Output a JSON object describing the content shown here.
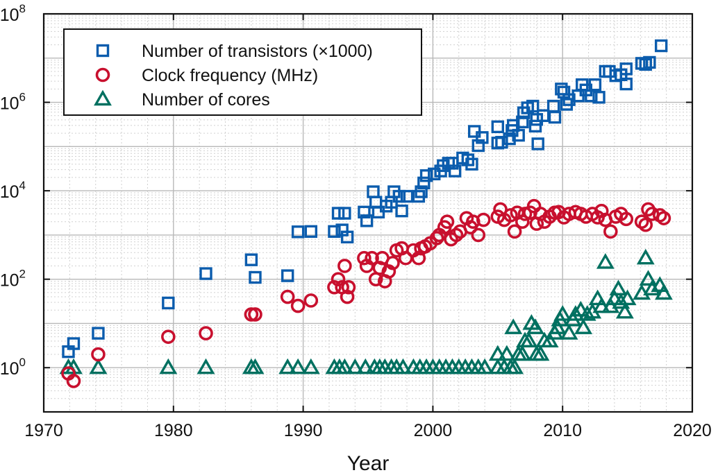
{
  "chart_data": {
    "type": "scatter",
    "title": "",
    "xlabel": "Year",
    "ylabel": "",
    "xlim": [
      1970,
      2020
    ],
    "ylim": [
      0.1,
      100000000
    ],
    "yscale": "log",
    "grid": true,
    "legend_position": "top-left",
    "x_ticks": [
      "1970",
      "1980",
      "1990",
      "2000",
      "2010",
      "2020"
    ],
    "y_ticks": [
      {
        "base": "10",
        "exp": "0"
      },
      {
        "base": "10",
        "exp": "2"
      },
      {
        "base": "10",
        "exp": "4"
      },
      {
        "base": "10",
        "exp": "6"
      },
      {
        "base": "10",
        "exp": "8"
      }
    ],
    "series": [
      {
        "name": "Number of transistors (×1000)",
        "marker": "square",
        "color": "#0b5cad",
        "points": [
          [
            1971.9,
            2.3
          ],
          [
            1972.3,
            3.5
          ],
          [
            1974.2,
            6
          ],
          [
            1979.6,
            29
          ],
          [
            1982.5,
            134
          ],
          [
            1986.0,
            275
          ],
          [
            1986.3,
            110
          ],
          [
            1988.8,
            120
          ],
          [
            1989.6,
            1180
          ],
          [
            1990.6,
            1200
          ],
          [
            1992.4,
            1200
          ],
          [
            1992.7,
            3100
          ],
          [
            1993.0,
            1300
          ],
          [
            1993.2,
            3100
          ],
          [
            1993.4,
            900
          ],
          [
            1994.7,
            3300
          ],
          [
            1994.9,
            2100
          ],
          [
            1995.6,
            5500
          ],
          [
            1995.8,
            3300
          ],
          [
            1995.4,
            9500
          ],
          [
            1996.4,
            4500
          ],
          [
            1996.8,
            5500
          ],
          [
            1997.0,
            9500
          ],
          [
            1997.4,
            7500
          ],
          [
            1997.6,
            3500
          ],
          [
            1998.0,
            7500
          ],
          [
            1998.9,
            7500
          ],
          [
            1999.1,
            9500
          ],
          [
            1999.3,
            15000
          ],
          [
            1999.5,
            22000
          ],
          [
            2000.1,
            24000
          ],
          [
            2000.6,
            28000
          ],
          [
            2000.8,
            37000
          ],
          [
            2001.2,
            42000
          ],
          [
            2001.5,
            42000
          ],
          [
            2001.7,
            28000
          ],
          [
            2002.3,
            55000
          ],
          [
            2002.7,
            50000
          ],
          [
            2003.0,
            40000
          ],
          [
            2003.2,
            220000
          ],
          [
            2003.5,
            105000
          ],
          [
            2003.8,
            160000
          ],
          [
            2005.0,
            280000
          ],
          [
            2005.0,
            120000
          ],
          [
            2005.3,
            125000
          ],
          [
            2005.9,
            150000
          ],
          [
            2006.1,
            230000
          ],
          [
            2006.2,
            300000
          ],
          [
            2006.6,
            180000
          ],
          [
            2006.9,
            360000
          ],
          [
            2007.0,
            580000
          ],
          [
            2007.3,
            750000
          ],
          [
            2007.7,
            820000
          ],
          [
            2007.9,
            290000
          ],
          [
            2008.0,
            410000
          ],
          [
            2008.1,
            115000
          ],
          [
            2008.5,
            500000
          ],
          [
            2009.3,
            820000
          ],
          [
            2009.4,
            460000
          ],
          [
            2009.9,
            2000000
          ],
          [
            2010.1,
            1700000
          ],
          [
            2010.3,
            900000
          ],
          [
            2010.5,
            1150000
          ],
          [
            2011.2,
            1400000
          ],
          [
            2011.5,
            2500000
          ],
          [
            2011.8,
            1900000
          ],
          [
            2012.2,
            1400000
          ],
          [
            2012.5,
            2500000
          ],
          [
            2012.8,
            1300000
          ],
          [
            2013.3,
            5000000
          ],
          [
            2013.6,
            5000000
          ],
          [
            2014.1,
            4000000
          ],
          [
            2014.5,
            4200000
          ],
          [
            2014.9,
            5700000
          ],
          [
            2014.9,
            2600000
          ],
          [
            2016.1,
            7600000
          ],
          [
            2016.4,
            7200000
          ],
          [
            2016.7,
            8000000
          ],
          [
            2017.6,
            19000000
          ]
        ]
      },
      {
        "name": "Clock frequency (MHz)",
        "marker": "circle",
        "color": "#c8102e",
        "points": [
          [
            1971.9,
            0.74
          ],
          [
            1972.3,
            0.5
          ],
          [
            1974.2,
            2
          ],
          [
            1979.6,
            5
          ],
          [
            1982.5,
            6
          ],
          [
            1986.0,
            16
          ],
          [
            1986.3,
            16
          ],
          [
            1988.8,
            40
          ],
          [
            1989.6,
            25
          ],
          [
            1990.6,
            33
          ],
          [
            1992.4,
            66
          ],
          [
            1992.7,
            100
          ],
          [
            1993.0,
            66
          ],
          [
            1993.2,
            200
          ],
          [
            1993.4,
            40
          ],
          [
            1993.5,
            66
          ],
          [
            1994.7,
            300
          ],
          [
            1994.9,
            200
          ],
          [
            1995.3,
            300
          ],
          [
            1995.6,
            100
          ],
          [
            1995.9,
            180
          ],
          [
            1996.1,
            300
          ],
          [
            1996.3,
            90
          ],
          [
            1996.6,
            150
          ],
          [
            1996.9,
            233
          ],
          [
            1997.2,
            450
          ],
          [
            1997.6,
            500
          ],
          [
            1997.9,
            300
          ],
          [
            1998.5,
            450
          ],
          [
            1998.9,
            300
          ],
          [
            1999.1,
            500
          ],
          [
            1999.4,
            550
          ],
          [
            1999.8,
            650
          ],
          [
            2000.3,
            850
          ],
          [
            2000.5,
            1000
          ],
          [
            2000.9,
            1500
          ],
          [
            2001.1,
            2000
          ],
          [
            2001.4,
            800
          ],
          [
            2001.8,
            1000
          ],
          [
            2002.1,
            1200
          ],
          [
            2002.6,
            2400
          ],
          [
            2002.9,
            1500
          ],
          [
            2003.1,
            2000
          ],
          [
            2003.5,
            1000
          ],
          [
            2003.9,
            2200
          ],
          [
            2005.0,
            2600
          ],
          [
            2005.2,
            3800
          ],
          [
            2005.5,
            2200
          ],
          [
            2006.0,
            2800
          ],
          [
            2006.3,
            1200
          ],
          [
            2006.5,
            3200
          ],
          [
            2006.9,
            2000
          ],
          [
            2007.1,
            3000
          ],
          [
            2007.5,
            3200
          ],
          [
            2007.8,
            4500
          ],
          [
            2008.0,
            1800
          ],
          [
            2008.3,
            3000
          ],
          [
            2008.6,
            2000
          ],
          [
            2009.0,
            2600
          ],
          [
            2009.4,
            3200
          ],
          [
            2009.7,
            3300
          ],
          [
            2010.1,
            2500
          ],
          [
            2010.5,
            3000
          ],
          [
            2011.0,
            3300
          ],
          [
            2011.4,
            3000
          ],
          [
            2011.8,
            2600
          ],
          [
            2012.3,
            3000
          ],
          [
            2012.7,
            2500
          ],
          [
            2013.0,
            3500
          ],
          [
            2013.3,
            2200
          ],
          [
            2013.7,
            1200
          ],
          [
            2014.1,
            2600
          ],
          [
            2014.5,
            3000
          ],
          [
            2014.9,
            2300
          ],
          [
            2016.1,
            2000
          ],
          [
            2016.4,
            1700
          ],
          [
            2016.6,
            3800
          ],
          [
            2016.9,
            3000
          ],
          [
            2017.5,
            2800
          ],
          [
            2017.8,
            2400
          ]
        ]
      },
      {
        "name": "Number of cores",
        "marker": "triangle",
        "color": "#007060",
        "points": [
          [
            1971.9,
            1
          ],
          [
            1972.3,
            1
          ],
          [
            1974.2,
            1
          ],
          [
            1979.6,
            1
          ],
          [
            1982.5,
            1
          ],
          [
            1986.0,
            1
          ],
          [
            1986.3,
            1
          ],
          [
            1988.8,
            1
          ],
          [
            1989.6,
            1
          ],
          [
            1990.6,
            1
          ],
          [
            1992.4,
            1
          ],
          [
            1992.8,
            1
          ],
          [
            1993.2,
            1
          ],
          [
            1994.0,
            1
          ],
          [
            1994.8,
            1
          ],
          [
            1995.5,
            1
          ],
          [
            1995.9,
            1
          ],
          [
            1996.3,
            1
          ],
          [
            1996.8,
            1
          ],
          [
            1997.2,
            1
          ],
          [
            1997.7,
            1
          ],
          [
            1998.5,
            1
          ],
          [
            1999.0,
            1
          ],
          [
            1999.5,
            1
          ],
          [
            2000.0,
            1
          ],
          [
            2000.5,
            1
          ],
          [
            2001.0,
            1
          ],
          [
            2001.5,
            1
          ],
          [
            2002.0,
            1
          ],
          [
            2002.5,
            1
          ],
          [
            2003.0,
            1
          ],
          [
            2003.5,
            1
          ],
          [
            2004.0,
            1
          ],
          [
            2005.0,
            1
          ],
          [
            2005.0,
            2
          ],
          [
            2005.5,
            1
          ],
          [
            2005.7,
            2
          ],
          [
            2006.0,
            1
          ],
          [
            2006.2,
            8
          ],
          [
            2006.3,
            1
          ],
          [
            2006.6,
            2
          ],
          [
            2006.9,
            2
          ],
          [
            2007.1,
            4
          ],
          [
            2007.4,
            4
          ],
          [
            2007.6,
            10
          ],
          [
            2007.9,
            8
          ],
          [
            2008.0,
            2
          ],
          [
            2008.3,
            2
          ],
          [
            2008.6,
            4
          ],
          [
            2009.0,
            4
          ],
          [
            2009.4,
            6
          ],
          [
            2009.6,
            8
          ],
          [
            2009.8,
            12
          ],
          [
            2010.0,
            16
          ],
          [
            2010.5,
            6
          ],
          [
            2010.8,
            12
          ],
          [
            2011.0,
            16
          ],
          [
            2011.4,
            20
          ],
          [
            2011.6,
            8
          ],
          [
            2011.9,
            16
          ],
          [
            2012.3,
            18
          ],
          [
            2012.7,
            36
          ],
          [
            2013.0,
            24
          ],
          [
            2013.3,
            240
          ],
          [
            2013.7,
            24
          ],
          [
            2014.0,
            36
          ],
          [
            2014.3,
            60
          ],
          [
            2014.5,
            30
          ],
          [
            2014.8,
            18
          ],
          [
            2015.0,
            36
          ],
          [
            2016.1,
            48
          ],
          [
            2016.4,
            300
          ],
          [
            2016.6,
            100
          ],
          [
            2016.9,
            60
          ],
          [
            2017.5,
            72
          ],
          [
            2017.8,
            48
          ]
        ]
      }
    ]
  }
}
